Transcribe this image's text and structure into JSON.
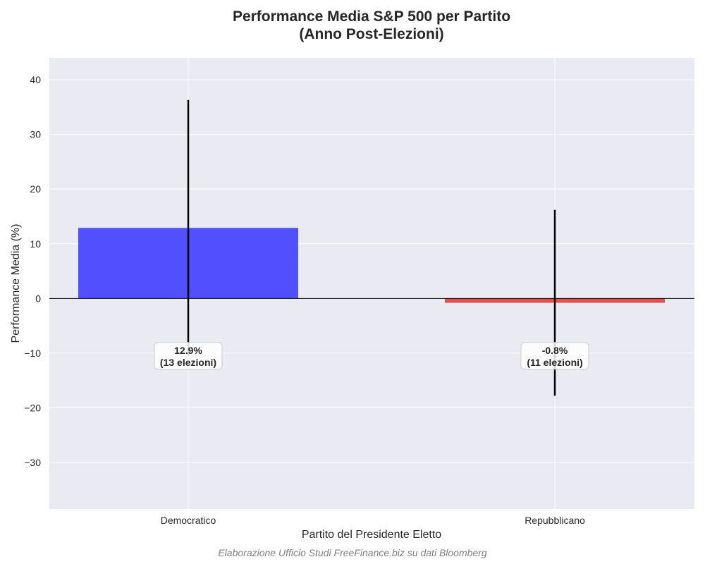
{
  "chart_data": {
    "type": "bar",
    "title_line1": "Performance Media S&P 500 per Partito",
    "title_line2": "(Anno Post-Elezioni)",
    "xlabel": "Partito del Presidente Eletto",
    "ylabel": "Performance Media (%)",
    "ylim": [
      -38.5,
      44
    ],
    "yticks": [
      40,
      30,
      20,
      10,
      0,
      -10,
      -20,
      -30
    ],
    "ytick_labels": [
      "40",
      "30",
      "20",
      "10",
      "0",
      "−10",
      "−20",
      "−30"
    ],
    "grid": true,
    "categories": [
      "Democratico",
      "Repubblicano"
    ],
    "values": [
      12.9,
      -0.8
    ],
    "error": [
      23.4,
      17.0
    ],
    "colors": [
      "#4848ff",
      "#ee4444"
    ],
    "annotations": [
      {
        "line1": "12.9%",
        "line2": "(13 elezioni)",
        "y": -10.5
      },
      {
        "line1": "-0.8%",
        "line2": "(11 elezioni)",
        "y": -10.5
      }
    ],
    "footnote": "Elaborazione Ufficio Studi FreeFinance.biz su dati Bloomberg"
  }
}
